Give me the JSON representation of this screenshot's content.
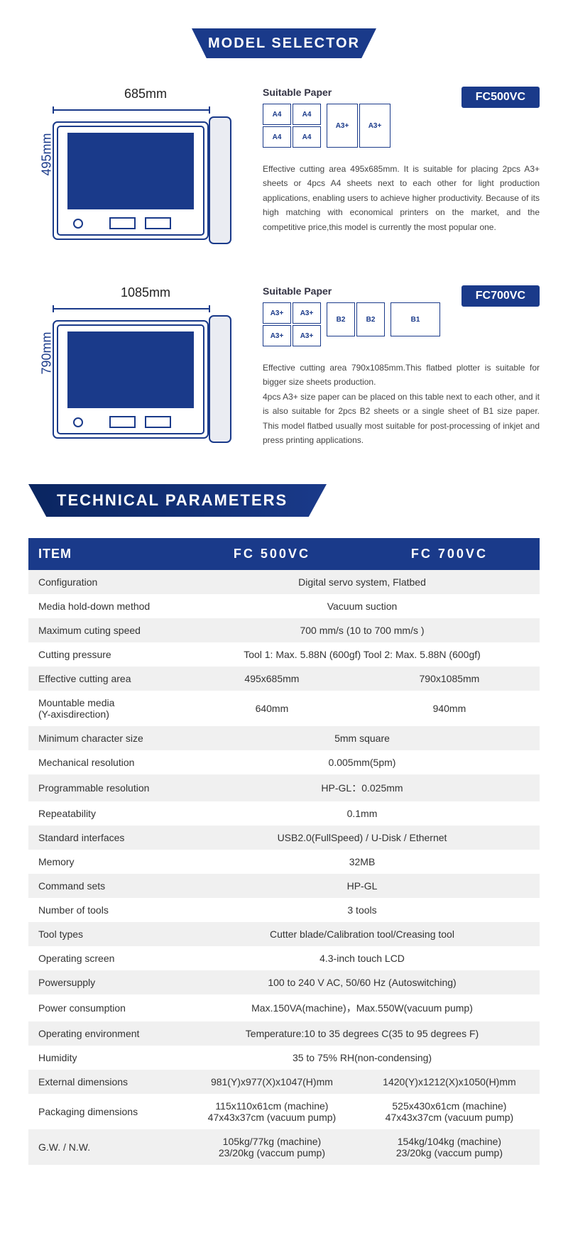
{
  "headers": {
    "model_selector": "MODEL SELECTOR",
    "technical_parameters": "TECHNICAL PARAMETERS"
  },
  "colors": {
    "primary": "#1a3a8a",
    "text": "#333333",
    "alt_row": "#f0f0f0"
  },
  "models": [
    {
      "id": "FC500VC",
      "width_label": "685mm",
      "height_label": "495mm",
      "suitable_paper_label": "Suitable Paper",
      "paper_layout": "4_plus_2",
      "paper_4": [
        "A4",
        "A4",
        "A4",
        "A4"
      ],
      "paper_2": [
        "A3+",
        "A3+"
      ],
      "description": "Effective cutting area 495x685mm. It is suitable for placing 2pcs A3+ sheets or 4pcs A4 sheets next to each other for light production applications, enabling users to achieve higher productivity. Because of its high matching with economical printers on the market, and the competitive price,this model is currently the most popular one."
    },
    {
      "id": "FC700VC",
      "width_label": "1085mm",
      "height_label": "790mm",
      "suitable_paper_label": "Suitable Paper",
      "paper_layout": "4_2_1",
      "paper_4": [
        "A3+",
        "A3+",
        "A3+",
        "A3+"
      ],
      "paper_b2": [
        "B2",
        "B2"
      ],
      "paper_b1": [
        "B1"
      ],
      "description": "Effective cutting area 790x1085mm.This flatbed plotter is suitable for bigger size sheets production.\n4pcs A3+ size paper can be placed on this table next to each other, and it is also suitable for 2pcs B2 sheets or a single sheet of B1 size paper. This model flatbed usually most suitable for post-processing of inkjet and press printing applications."
    }
  ],
  "table": {
    "headers": [
      "ITEM",
      "FC 500VC",
      "FC 700VC"
    ],
    "rows": [
      {
        "item": "Configuration",
        "span": true,
        "val": "Digital servo system, Flatbed"
      },
      {
        "item": "Media hold-down method",
        "span": true,
        "val": "Vacuum suction"
      },
      {
        "item": "Maximum cuting speed",
        "span": true,
        "val": "700 mm/s (10 to 700 mm/s )"
      },
      {
        "item": "Cutting pressure",
        "span": true,
        "val": "Tool 1: Max. 5.88N (600gf)  Tool 2: Max. 5.88N (600gf)"
      },
      {
        "item": "Effective cutting area",
        "v1": "495x685mm",
        "v2": "790x1085mm"
      },
      {
        "item": "Mountable media\n(Y-axisdirection)",
        "v1": "640mm",
        "v2": "940mm"
      },
      {
        "item": "Minimum character size",
        "span": true,
        "val": "5mm square"
      },
      {
        "item": "Mechanical resolution",
        "span": true,
        "val": "0.005mm(5pm)"
      },
      {
        "item": "Programmable resolution",
        "span": true,
        "val": "HP-GL：0.025mm"
      },
      {
        "item": "Repeatability",
        "span": true,
        "val": "0.1mm"
      },
      {
        "item": "Standard interfaces",
        "span": true,
        "val": "USB2.0(FullSpeed) / U-Disk / Ethernet"
      },
      {
        "item": "Memory",
        "span": true,
        "val": "32MB"
      },
      {
        "item": "Command sets",
        "span": true,
        "val": "HP-GL"
      },
      {
        "item": "Number of tools",
        "span": true,
        "val": "3 tools"
      },
      {
        "item": "Tool types",
        "span": true,
        "val": "Cutter blade/Calibration tool/Creasing tool"
      },
      {
        "item": "Operating screen",
        "span": true,
        "val": "4.3-inch touch LCD"
      },
      {
        "item": "Powersupply",
        "span": true,
        "val": "100 to 240 V AC,   50/60 Hz (Autoswitching)"
      },
      {
        "item": "Power consumption",
        "span": true,
        "val": "Max.150VA(machine)，Max.550W(vacuum pump)"
      },
      {
        "item": "Operating environment",
        "span": true,
        "val": "Temperature:10 to 35 degrees C(35 to 95 degrees F)"
      },
      {
        "item": "Humidity",
        "span": true,
        "val": "35 to 75% RH(non-condensing)"
      },
      {
        "item": "External dimensions",
        "v1": "981(Y)x977(X)x1047(H)mm",
        "v2": "1420(Y)x1212(X)x1050(H)mm"
      },
      {
        "item": "Packaging dimensions",
        "v1": "115x110x61cm (machine)\n47x43x37cm (vacuum pump)",
        "v2": "525x430x61cm (machine)\n47x43x37cm (vacuum pump)"
      },
      {
        "item": "G.W. / N.W.",
        "v1": "105kg/77kg (machine)\n23/20kg (vaccum pump)",
        "v2": "154kg/104kg (machine)\n23/20kg (vaccum pump)"
      }
    ]
  }
}
